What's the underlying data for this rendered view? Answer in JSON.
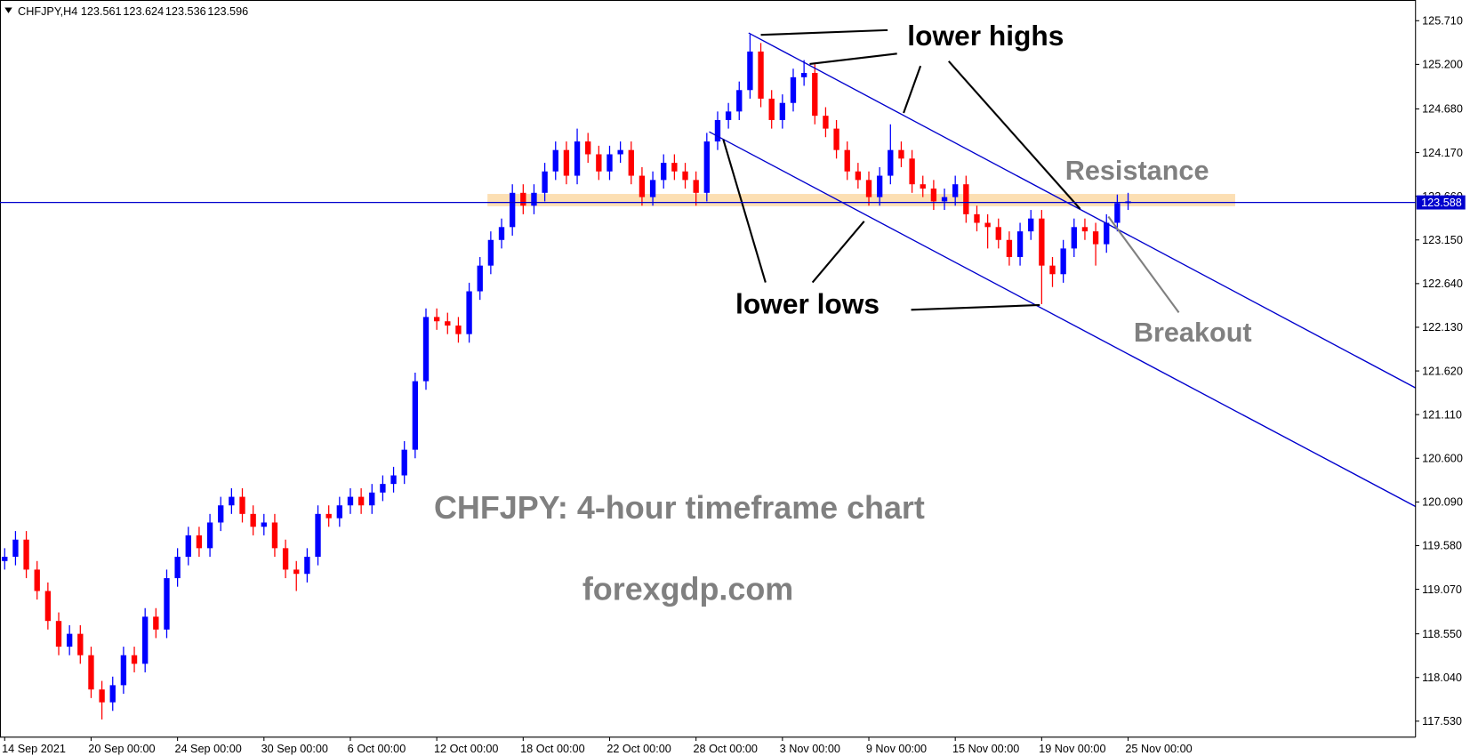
{
  "chart_data": {
    "type": "candlestick",
    "symbol": "CHFJPY,H4",
    "ohlc": [
      123.561,
      123.624,
      123.536,
      123.596
    ],
    "up_color": "#0000ff",
    "down_color": "#ff0000",
    "categories": [
      "14 Sep 2021",
      null,
      null,
      null,
      null,
      null,
      null,
      null,
      "20 Sep 00:00",
      null,
      null,
      null,
      null,
      null,
      null,
      null,
      "24 Sep 00:00",
      null,
      null,
      null,
      null,
      null,
      null,
      null,
      "30 Sep 00:00",
      null,
      null,
      null,
      null,
      null,
      null,
      null,
      "6 Oct 00:00",
      null,
      null,
      null,
      null,
      null,
      null,
      null,
      "12 Oct 00:00",
      null,
      null,
      null,
      null,
      null,
      null,
      null,
      "18 Oct 00:00",
      null,
      null,
      null,
      null,
      null,
      null,
      null,
      "22 Oct 00:00",
      null,
      null,
      null,
      null,
      null,
      null,
      null,
      "28 Oct 00:00",
      null,
      null,
      null,
      null,
      null,
      null,
      null,
      "3 Nov 00:00",
      null,
      null,
      null,
      null,
      null,
      null,
      null,
      "9 Nov 00:00",
      null,
      null,
      null,
      null,
      null,
      null,
      null,
      "15 Nov 00:00",
      null,
      null,
      null,
      null,
      null,
      null,
      null,
      "19 Nov 00:00",
      null,
      null,
      null,
      null,
      null,
      null,
      null,
      "25 Nov 00:00"
    ],
    "open": [
      119.4,
      119.45,
      119.65,
      119.3,
      119.05,
      118.7,
      118.4,
      118.55,
      118.3,
      117.9,
      117.75,
      117.95,
      118.3,
      118.2,
      118.75,
      118.6,
      119.2,
      119.45,
      119.7,
      119.55,
      119.85,
      120.05,
      120.15,
      119.95,
      119.8,
      119.85,
      119.55,
      119.3,
      119.25,
      119.45,
      119.95,
      119.9,
      120.05,
      120.15,
      120.05,
      120.2,
      120.3,
      120.4,
      120.7,
      121.5,
      122.25,
      122.2,
      122.15,
      122.05,
      122.55,
      122.85,
      123.15,
      123.3,
      123.7,
      123.55,
      123.7,
      123.95,
      124.2,
      123.9,
      124.3,
      124.15,
      123.95,
      124.15,
      124.2,
      123.9,
      123.65,
      123.85,
      124.05,
      123.95,
      123.85,
      123.7,
      124.3,
      124.55,
      124.65,
      124.9,
      125.35,
      124.8,
      124.55,
      124.75,
      125.05,
      125.1,
      124.6,
      124.45,
      124.2,
      123.95,
      123.85,
      123.65,
      123.9,
      124.2,
      124.1,
      123.8,
      123.75,
      123.6,
      123.65,
      123.8,
      123.45,
      123.35,
      123.3,
      123.15,
      122.95,
      123.25,
      123.4,
      122.85,
      122.75,
      123.05,
      123.3,
      123.25,
      123.1,
      123.35,
      123.58
    ],
    "high": [
      119.55,
      119.75,
      119.75,
      119.4,
      119.15,
      118.8,
      118.65,
      118.65,
      118.4,
      118.0,
      118.05,
      118.4,
      118.4,
      118.85,
      118.85,
      119.3,
      119.55,
      119.8,
      119.8,
      119.95,
      120.15,
      120.25,
      120.25,
      120.05,
      119.95,
      119.95,
      119.65,
      119.4,
      119.55,
      120.05,
      120.05,
      120.15,
      120.25,
      120.25,
      120.3,
      120.4,
      120.5,
      120.8,
      121.6,
      122.35,
      122.35,
      122.3,
      122.25,
      122.65,
      122.95,
      123.25,
      123.4,
      123.8,
      123.8,
      123.8,
      124.05,
      124.3,
      124.3,
      124.45,
      124.4,
      124.25,
      124.25,
      124.3,
      124.3,
      124.0,
      123.95,
      124.15,
      124.15,
      124.05,
      123.95,
      124.4,
      124.65,
      124.75,
      125.0,
      125.55,
      125.45,
      124.9,
      124.85,
      125.15,
      125.25,
      125.2,
      124.7,
      124.55,
      124.3,
      124.05,
      123.95,
      124.0,
      124.5,
      124.3,
      124.2,
      123.9,
      123.85,
      123.75,
      123.9,
      123.9,
      123.55,
      123.45,
      123.4,
      123.25,
      123.35,
      123.5,
      123.5,
      122.95,
      123.15,
      123.4,
      123.4,
      123.35,
      123.45,
      123.68,
      123.7
    ],
    "low": [
      119.3,
      119.35,
      119.2,
      118.95,
      118.6,
      118.3,
      118.3,
      118.2,
      117.8,
      117.55,
      117.65,
      117.85,
      118.1,
      118.1,
      118.5,
      118.5,
      119.1,
      119.35,
      119.45,
      119.45,
      119.75,
      119.95,
      119.85,
      119.7,
      119.7,
      119.45,
      119.2,
      119.05,
      119.15,
      119.35,
      119.8,
      119.8,
      119.95,
      119.95,
      119.95,
      120.1,
      120.2,
      120.3,
      120.6,
      121.4,
      122.1,
      122.05,
      121.95,
      121.95,
      122.45,
      122.75,
      123.05,
      123.2,
      123.45,
      123.45,
      123.6,
      123.85,
      123.8,
      123.8,
      124.05,
      123.85,
      123.85,
      124.05,
      123.8,
      123.55,
      123.55,
      123.75,
      123.85,
      123.75,
      123.55,
      123.6,
      124.2,
      124.45,
      124.55,
      124.8,
      124.7,
      124.45,
      124.45,
      124.65,
      124.95,
      124.5,
      124.35,
      124.1,
      123.85,
      123.75,
      123.55,
      123.55,
      123.8,
      124.0,
      123.7,
      123.65,
      123.5,
      123.5,
      123.55,
      123.35,
      123.25,
      123.05,
      123.05,
      122.85,
      122.85,
      123.15,
      122.4,
      122.6,
      122.65,
      122.95,
      123.15,
      122.85,
      123.0,
      123.25,
      123.5
    ],
    "close": [
      119.45,
      119.65,
      119.3,
      119.05,
      118.7,
      118.4,
      118.55,
      118.3,
      117.9,
      117.75,
      117.95,
      118.3,
      118.2,
      118.75,
      118.6,
      119.2,
      119.45,
      119.7,
      119.55,
      119.85,
      120.05,
      120.15,
      119.95,
      119.8,
      119.85,
      119.55,
      119.3,
      119.25,
      119.45,
      119.95,
      119.9,
      120.05,
      120.15,
      120.05,
      120.2,
      120.3,
      120.4,
      120.7,
      121.5,
      122.25,
      122.2,
      122.15,
      122.05,
      122.55,
      122.85,
      123.15,
      123.3,
      123.7,
      123.55,
      123.7,
      123.95,
      124.2,
      123.9,
      124.3,
      124.15,
      123.95,
      124.15,
      124.2,
      123.9,
      123.65,
      123.85,
      124.05,
      123.95,
      123.85,
      123.7,
      124.3,
      124.55,
      124.65,
      124.9,
      125.35,
      124.8,
      124.55,
      124.75,
      125.05,
      125.1,
      124.6,
      124.45,
      124.2,
      123.95,
      123.85,
      123.65,
      123.9,
      124.2,
      124.1,
      123.8,
      123.75,
      123.6,
      123.65,
      123.8,
      123.45,
      123.35,
      123.3,
      123.15,
      122.95,
      123.25,
      123.4,
      122.85,
      122.75,
      123.05,
      123.3,
      123.25,
      123.1,
      123.35,
      123.58,
      123.6
    ],
    "ylim": [
      117.343,
      125.952
    ],
    "yticks": [
      {
        "value": 125.71,
        "label": "125.710"
      },
      {
        "value": 125.2,
        "label": "125.200"
      },
      {
        "value": 124.68,
        "label": "124.680"
      },
      {
        "value": 124.17,
        "label": "124.170"
      },
      {
        "value": 123.66,
        "label": "123.660"
      },
      {
        "value": 123.15,
        "label": "123.150"
      },
      {
        "value": 122.64,
        "label": "122.640"
      },
      {
        "value": 122.13,
        "label": "122.130"
      },
      {
        "value": 121.62,
        "label": "121.620"
      },
      {
        "value": 121.11,
        "label": "121.110"
      },
      {
        "value": 120.6,
        "label": "120.600"
      },
      {
        "value": 120.09,
        "label": "120.090"
      },
      {
        "value": 119.58,
        "label": "119.580"
      },
      {
        "value": 119.07,
        "label": "119.070"
      },
      {
        "value": 118.55,
        "label": "118.550"
      },
      {
        "value": 118.04,
        "label": "118.040"
      },
      {
        "value": 117.53,
        "label": "117.530"
      }
    ],
    "price_line": 123.588,
    "price_line_color": "#0000cd",
    "grid": false,
    "annotations": {
      "lower_highs": "lower highs",
      "lower_lows": "lower lows",
      "resistance": "Resistance",
      "breakout": "Breakout",
      "caption": "CHFJPY: 4-hour timeframe chart",
      "site": "forexgdp.com"
    }
  }
}
